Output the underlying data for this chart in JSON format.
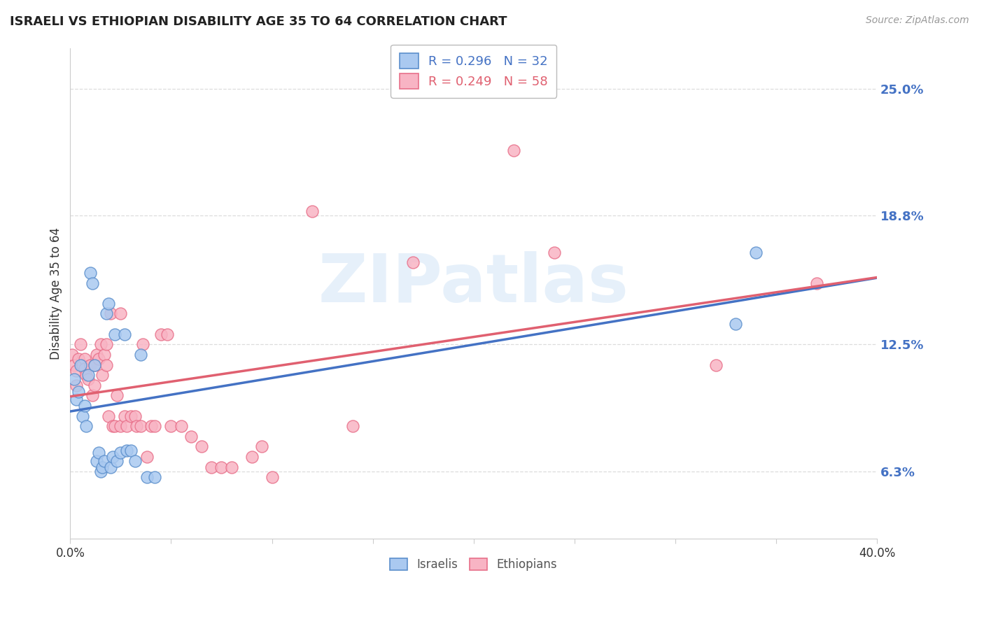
{
  "title": "ISRAELI VS ETHIOPIAN DISABILITY AGE 35 TO 64 CORRELATION CHART",
  "source": "Source: ZipAtlas.com",
  "ylabel": "Disability Age 35 to 64",
  "ytick_labels": [
    "25.0%",
    "18.8%",
    "12.5%",
    "6.3%"
  ],
  "ytick_values": [
    0.25,
    0.188,
    0.125,
    0.063
  ],
  "xlim": [
    0.0,
    0.4
  ],
  "ylim": [
    0.03,
    0.27
  ],
  "watermark": "ZIPatlas",
  "israeli_color": "#aac9f0",
  "ethiopian_color": "#f8b4c4",
  "israeli_edge_color": "#5b8fcc",
  "ethiopian_edge_color": "#e8708a",
  "israeli_line_color": "#4472c4",
  "ethiopian_line_color": "#e06070",
  "background_color": "#ffffff",
  "israeli_x": [
    0.002,
    0.003,
    0.004,
    0.005,
    0.006,
    0.007,
    0.008,
    0.009,
    0.01,
    0.011,
    0.012,
    0.013,
    0.014,
    0.015,
    0.016,
    0.017,
    0.018,
    0.019,
    0.02,
    0.021,
    0.022,
    0.023,
    0.025,
    0.027,
    0.028,
    0.03,
    0.032,
    0.035,
    0.038,
    0.042,
    0.33,
    0.34
  ],
  "israeli_y": [
    0.108,
    0.098,
    0.102,
    0.115,
    0.09,
    0.095,
    0.085,
    0.11,
    0.16,
    0.155,
    0.115,
    0.068,
    0.072,
    0.063,
    0.065,
    0.068,
    0.14,
    0.145,
    0.065,
    0.07,
    0.13,
    0.068,
    0.072,
    0.13,
    0.073,
    0.073,
    0.068,
    0.12,
    0.06,
    0.06,
    0.135,
    0.17
  ],
  "ethiopian_x": [
    0.001,
    0.002,
    0.003,
    0.003,
    0.004,
    0.005,
    0.006,
    0.007,
    0.007,
    0.008,
    0.009,
    0.01,
    0.011,
    0.012,
    0.012,
    0.013,
    0.014,
    0.015,
    0.016,
    0.017,
    0.018,
    0.018,
    0.019,
    0.02,
    0.021,
    0.022,
    0.023,
    0.025,
    0.025,
    0.027,
    0.028,
    0.03,
    0.032,
    0.033,
    0.035,
    0.036,
    0.038,
    0.04,
    0.042,
    0.045,
    0.048,
    0.05,
    0.055,
    0.06,
    0.065,
    0.07,
    0.075,
    0.08,
    0.09,
    0.095,
    0.1,
    0.12,
    0.14,
    0.17,
    0.22,
    0.24,
    0.32,
    0.37
  ],
  "ethiopian_y": [
    0.12,
    0.115,
    0.112,
    0.105,
    0.118,
    0.125,
    0.115,
    0.118,
    0.113,
    0.11,
    0.108,
    0.115,
    0.1,
    0.115,
    0.105,
    0.12,
    0.118,
    0.125,
    0.11,
    0.12,
    0.115,
    0.125,
    0.09,
    0.14,
    0.085,
    0.085,
    0.1,
    0.14,
    0.085,
    0.09,
    0.085,
    0.09,
    0.09,
    0.085,
    0.085,
    0.125,
    0.07,
    0.085,
    0.085,
    0.13,
    0.13,
    0.085,
    0.085,
    0.08,
    0.075,
    0.065,
    0.065,
    0.065,
    0.07,
    0.075,
    0.06,
    0.19,
    0.085,
    0.165,
    0.22,
    0.17,
    0.115,
    0.155
  ],
  "xtick_positions": [
    0.0,
    0.05,
    0.1,
    0.15,
    0.2,
    0.25,
    0.3,
    0.35,
    0.4
  ],
  "grid_color": "#dddddd",
  "spine_color": "#cccccc"
}
